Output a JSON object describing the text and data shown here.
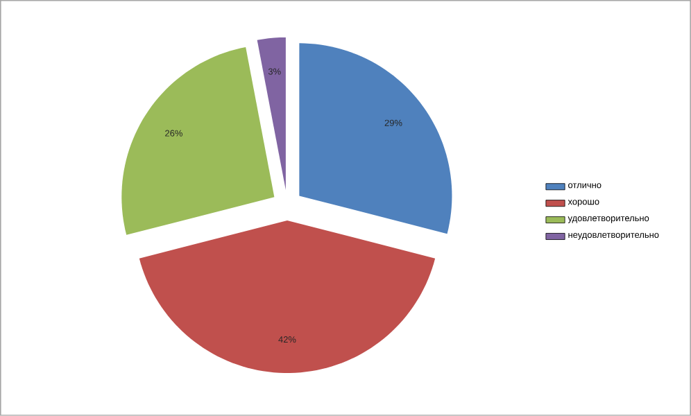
{
  "chart_data": {
    "type": "pie",
    "categories": [
      "отлично",
      "хорошо",
      "удовлетворительно",
      "неудовлетворительно"
    ],
    "values": [
      29,
      42,
      26,
      3
    ],
    "colors": [
      "#4f81bd",
      "#c0504d",
      "#9bbb59",
      "#8064a2"
    ],
    "value_labels": [
      "29%",
      "42%",
      "26%",
      "3%"
    ],
    "legend": "right"
  }
}
